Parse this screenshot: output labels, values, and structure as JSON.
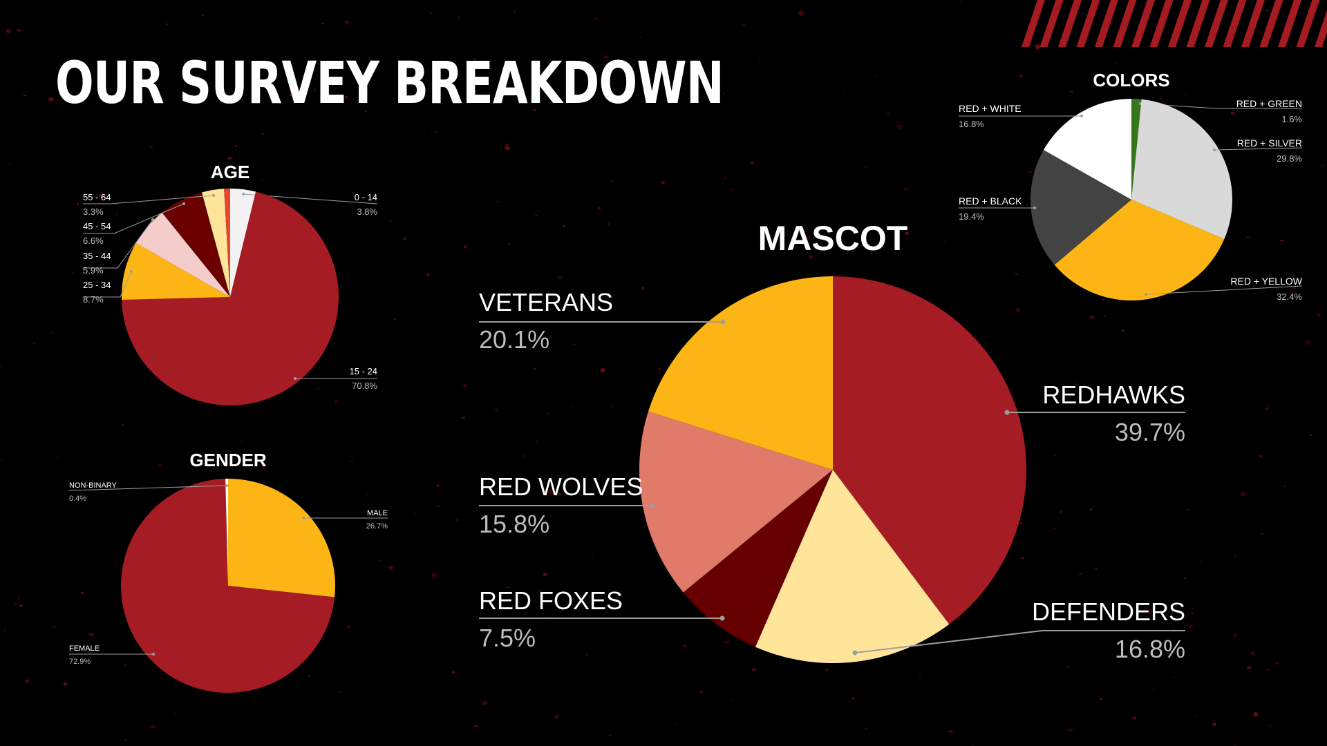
{
  "slide": {
    "title": "OUR SURVEY BREAKDOWN",
    "colors": {
      "background": "#000000",
      "stripes": "#a41c22",
      "title": "#ffffff",
      "label": "#ffffff",
      "value": "#bdbdbd",
      "leader": "#9e9e9e"
    }
  },
  "chart_data": [
    {
      "id": "age",
      "type": "pie",
      "title": "AGE",
      "unit": "%",
      "slices": [
        {
          "label": "0 - 14",
          "value": 3.8,
          "display": "3.8%",
          "color": "#f2f2f2"
        },
        {
          "label": "15 - 24",
          "value": 70.8,
          "display": "70.8%",
          "color": "#a61c24"
        },
        {
          "label": "25 - 34",
          "value": 8.7,
          "display": "8.7%",
          "color": "#fdb515"
        },
        {
          "label": "35 - 44",
          "value": 5.9,
          "display": "5.9%",
          "color": "#f5cccc"
        },
        {
          "label": "45 - 54",
          "value": 6.6,
          "display": "6.6%",
          "color": "#6b0000"
        },
        {
          "label": "55 - 64",
          "value": 3.3,
          "display": "3.3%",
          "color": "#ffe599"
        },
        {
          "label": "",
          "value": 0.9,
          "display": "",
          "color": "#e8452c"
        }
      ]
    },
    {
      "id": "gender",
      "type": "pie",
      "title": "GENDER",
      "unit": "%",
      "slices": [
        {
          "label": "MALE",
          "value": 26.7,
          "display": "26.7%",
          "color": "#fdb515"
        },
        {
          "label": "FEMALE",
          "value": 72.9,
          "display": "72.9%",
          "color": "#a61c24"
        },
        {
          "label": "NON-BINARY",
          "value": 0.4,
          "display": "0.4%",
          "color": "#ffffff"
        }
      ]
    },
    {
      "id": "mascot",
      "type": "pie",
      "title": "MASCOT",
      "unit": "%",
      "slices": [
        {
          "label": "REDHAWKS",
          "value": 39.7,
          "display": "39.7%",
          "color": "#a61c24"
        },
        {
          "label": "DEFENDERS",
          "value": 16.8,
          "display": "16.8%",
          "color": "#ffe599"
        },
        {
          "label": "RED FOXES",
          "value": 7.5,
          "display": "7.5%",
          "color": "#660000"
        },
        {
          "label": "RED WOLVES",
          "value": 15.8,
          "display": "15.8%",
          "color": "#e07b6a"
        },
        {
          "label": "VETERANS",
          "value": 20.1,
          "display": "20.1%",
          "color": "#fdb515"
        }
      ]
    },
    {
      "id": "colors",
      "type": "pie",
      "title": "COLORS",
      "unit": "%",
      "slices": [
        {
          "label": "RED + GREEN",
          "value": 1.6,
          "display": "1.6%",
          "color": "#38761d"
        },
        {
          "label": "RED + SILVER",
          "value": 29.8,
          "display": "29.8%",
          "color": "#d9d9d9"
        },
        {
          "label": "RED + YELLOW",
          "value": 32.4,
          "display": "32.4%",
          "color": "#fdb515"
        },
        {
          "label": "RED + BLACK",
          "value": 19.4,
          "display": "19.4%",
          "color": "#434343"
        },
        {
          "label": "RED + WHITE",
          "value": 16.8,
          "display": "16.8%",
          "color": "#ffffff"
        }
      ]
    }
  ]
}
